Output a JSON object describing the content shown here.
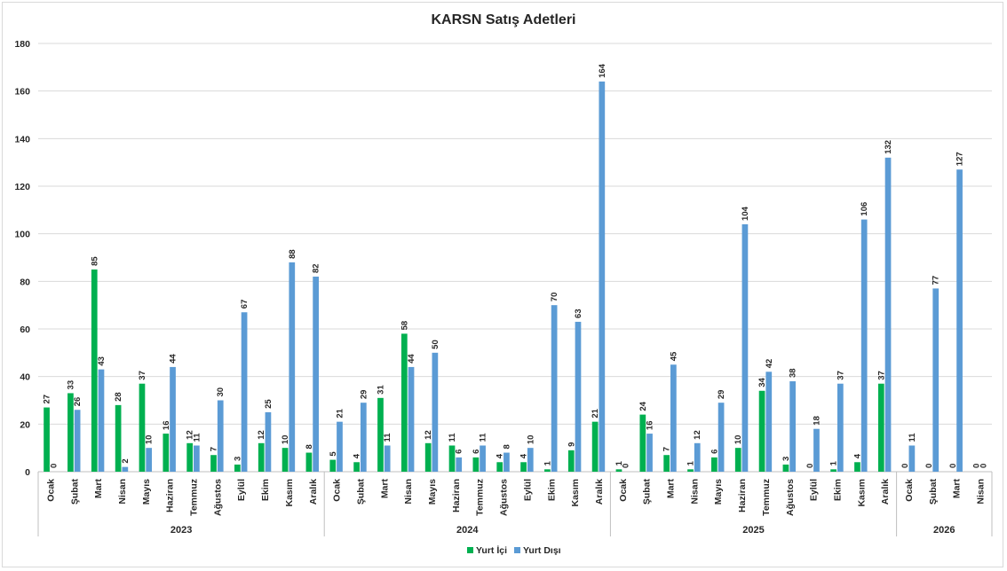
{
  "chart_data": {
    "type": "bar",
    "title": "KARSN Satış Adetleri",
    "ylim": [
      0,
      180
    ],
    "yticks": [
      0,
      20,
      40,
      60,
      80,
      100,
      120,
      140,
      160,
      180
    ],
    "grid": true,
    "legend_position": "bottom",
    "groups": [
      {
        "year": "2023",
        "months": [
          "Ocak",
          "Şubat",
          "Mart",
          "Nisan",
          "Mayıs",
          "Haziran",
          "Temmuz",
          "Ağustos",
          "Eylül",
          "Ekim",
          "Kasım",
          "Aralık"
        ]
      },
      {
        "year": "2024",
        "months": [
          "Ocak",
          "Şubat",
          "Mart",
          "Nisan",
          "Mayıs",
          "Haziran",
          "Temmuz",
          "Ağustos",
          "Eylül",
          "Ekim",
          "Kasım",
          "Aralık"
        ]
      },
      {
        "year": "2025",
        "months": [
          "Ocak",
          "Şubat",
          "Mart",
          "Nisan",
          "Mayıs",
          "Haziran",
          "Temmuz",
          "Ağustos",
          "Eylül",
          "Ekim",
          "Kasım",
          "Aralık"
        ]
      },
      {
        "year": "2026",
        "months": [
          "Ocak",
          "Şubat",
          "Mart",
          "Nisan"
        ]
      }
    ],
    "series": [
      {
        "name": "Yurt İçi",
        "color": "#00b050",
        "values": [
          27,
          33,
          85,
          28,
          37,
          16,
          12,
          7,
          3,
          12,
          10,
          8,
          5,
          4,
          31,
          58,
          12,
          11,
          6,
          4,
          4,
          1,
          9,
          21,
          1,
          24,
          7,
          1,
          6,
          10,
          34,
          3,
          0,
          1,
          4,
          37,
          0,
          0,
          0,
          0
        ]
      },
      {
        "name": "Yurt Dışı",
        "color": "#5b9bd5",
        "values": [
          0,
          26,
          43,
          2,
          10,
          44,
          11,
          30,
          67,
          25,
          88,
          82,
          21,
          29,
          11,
          44,
          50,
          6,
          11,
          8,
          10,
          70,
          63,
          164,
          0,
          16,
          45,
          12,
          29,
          104,
          42,
          38,
          18,
          37,
          106,
          132,
          11,
          77,
          127,
          0
        ]
      }
    ]
  }
}
